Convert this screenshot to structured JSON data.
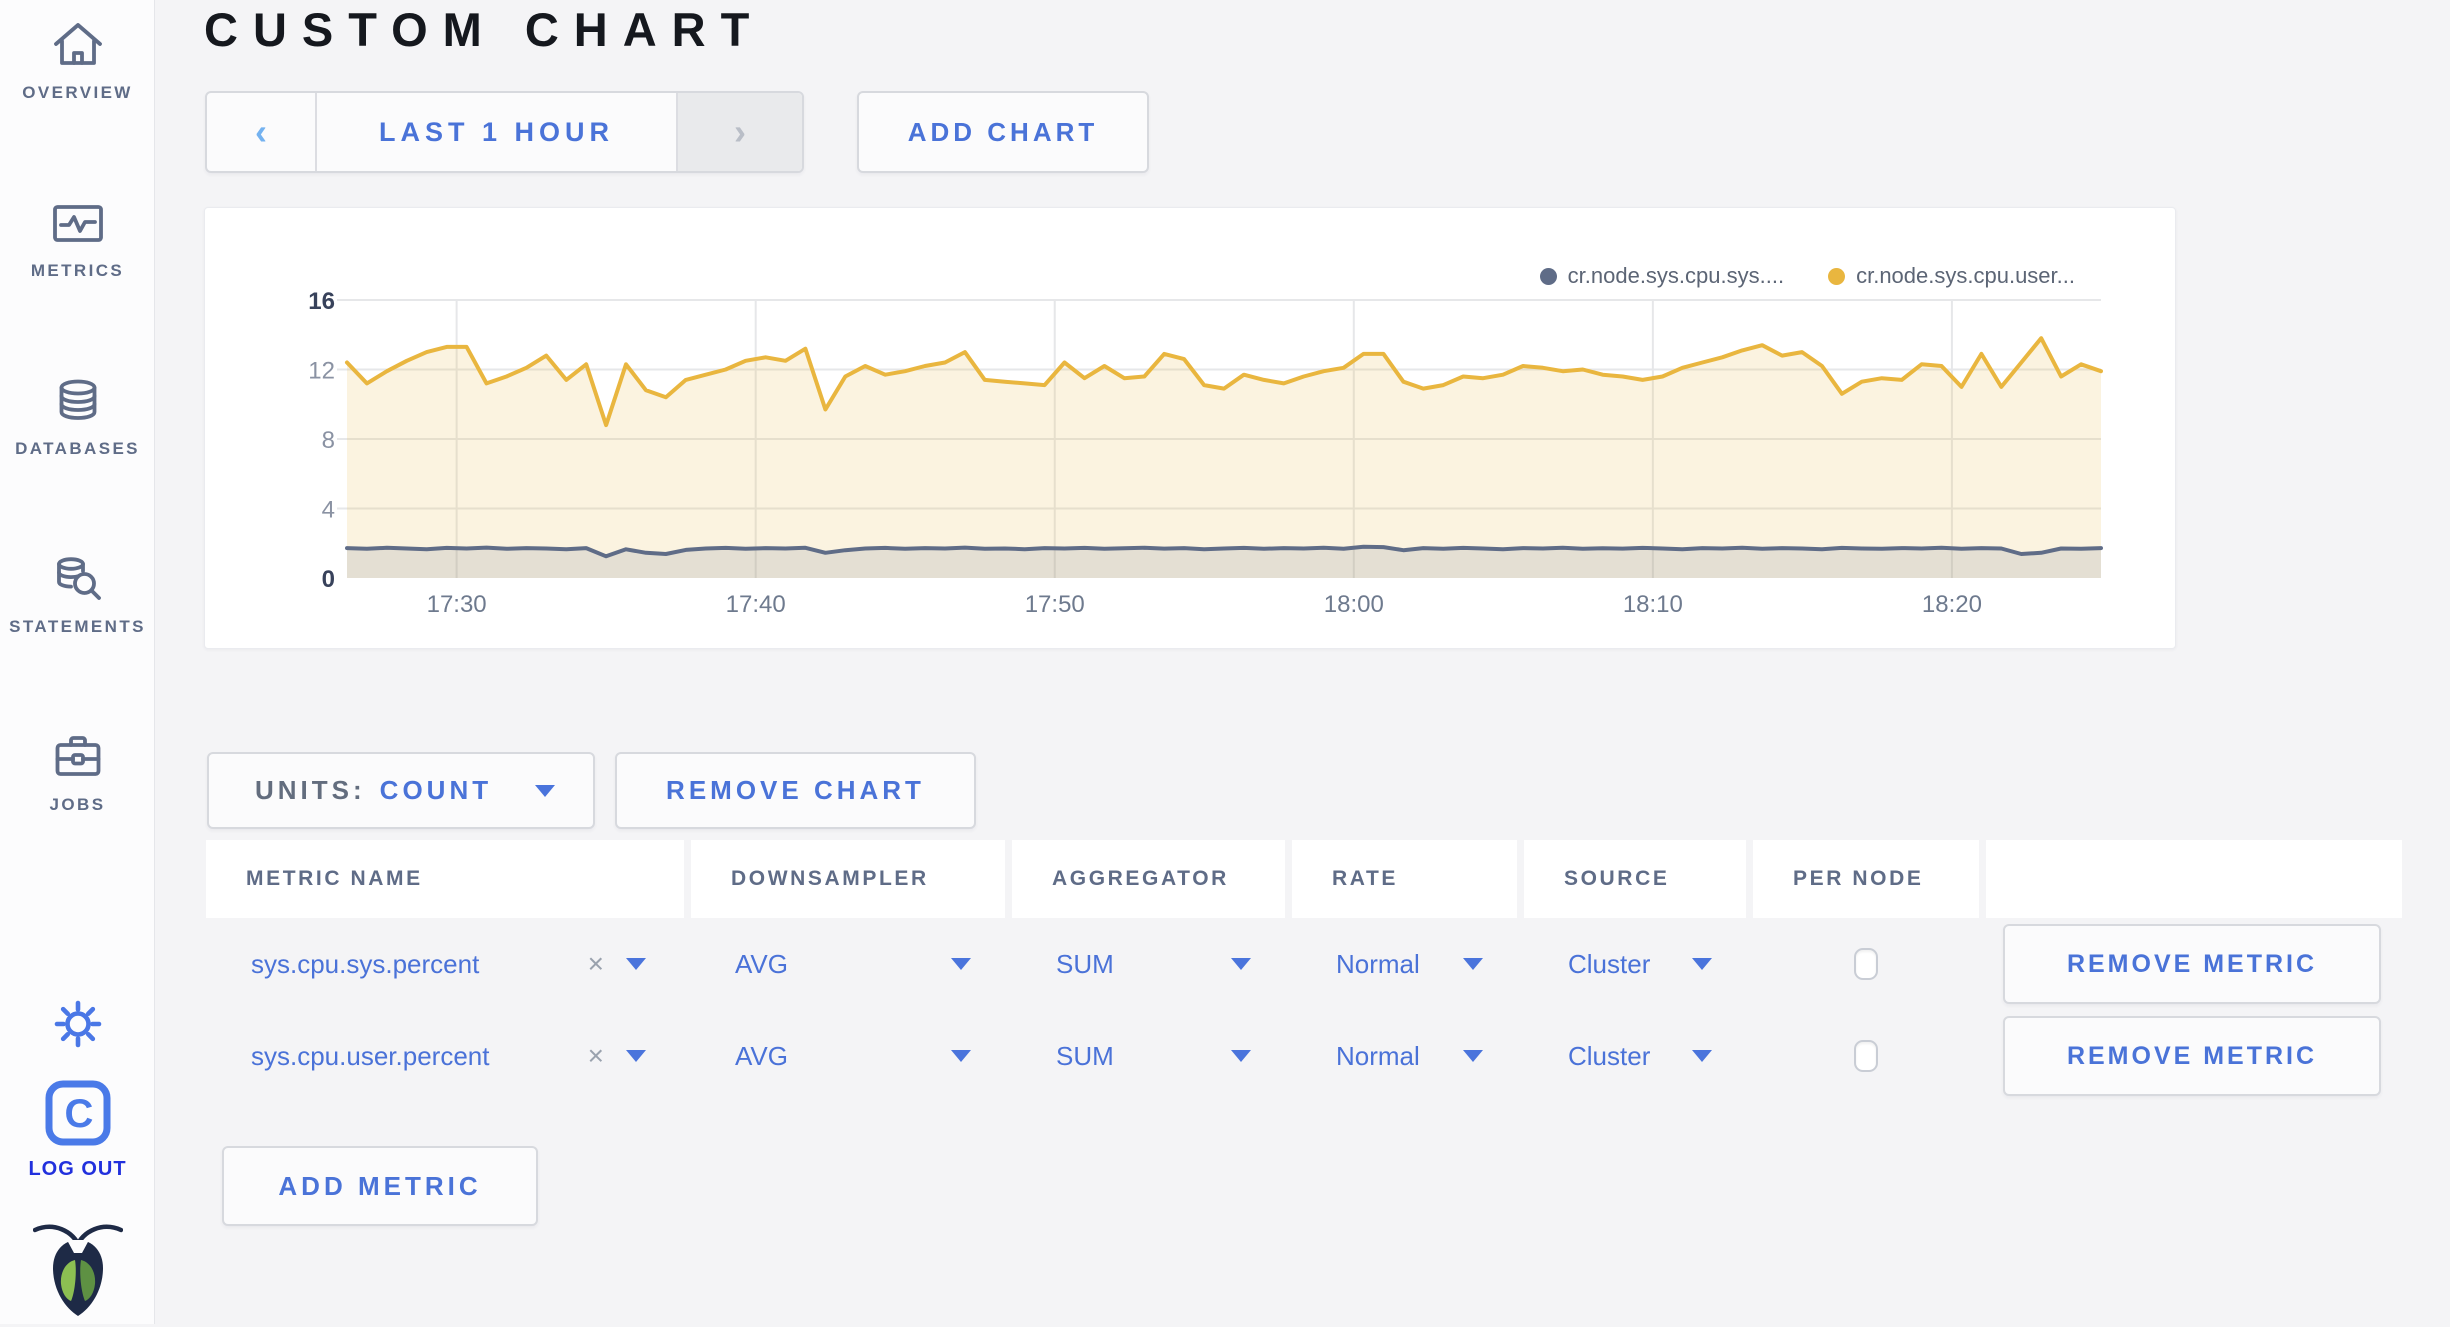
{
  "header": {
    "title": "CUSTOM CHART"
  },
  "sidebar": {
    "items": [
      {
        "id": "overview",
        "label": "OVERVIEW",
        "icon": "home-icon"
      },
      {
        "id": "metrics",
        "label": "METRICS",
        "icon": "metrics-icon"
      },
      {
        "id": "databases",
        "label": "DATABASES",
        "icon": "databases-icon"
      },
      {
        "id": "statements",
        "label": "STATEMENTS",
        "icon": "statements-icon"
      },
      {
        "id": "jobs",
        "label": "JOBS",
        "icon": "jobs-icon"
      }
    ],
    "logout": {
      "label": "LOG OUT",
      "logo_letter": "C"
    }
  },
  "toolbar": {
    "time_selector": {
      "prev_symbol": "‹",
      "label": "LAST 1 HOUR",
      "next_symbol": "›"
    },
    "add_chart_label": "ADD CHART"
  },
  "chart_data": {
    "type": "line",
    "ylim": [
      0,
      16
    ],
    "yticks": [
      0,
      4,
      8,
      12,
      16
    ],
    "xticks": [
      {
        "label": "17:30",
        "pos": 0.0625
      },
      {
        "label": "17:40",
        "pos": 0.233
      },
      {
        "label": "17:50",
        "pos": 0.4035
      },
      {
        "label": "18:00",
        "pos": 0.574
      },
      {
        "label": "18:10",
        "pos": 0.7445
      },
      {
        "label": "18:20",
        "pos": 0.915
      }
    ],
    "grid": true,
    "legend_position": "top-right",
    "series": [
      {
        "name": "cr.node.sys.cpu.sys....",
        "color": "#5f6c87",
        "fill": "rgba(95,108,135,0.14)",
        "values": [
          1.72,
          1.68,
          1.74,
          1.7,
          1.66,
          1.73,
          1.7,
          1.75,
          1.68,
          1.72,
          1.7,
          1.66,
          1.72,
          1.25,
          1.65,
          1.45,
          1.38,
          1.62,
          1.7,
          1.73,
          1.68,
          1.72,
          1.7,
          1.74,
          1.45,
          1.6,
          1.7,
          1.73,
          1.68,
          1.72,
          1.7,
          1.75,
          1.68,
          1.7,
          1.66,
          1.72,
          1.7,
          1.73,
          1.68,
          1.71,
          1.74,
          1.69,
          1.72,
          1.66,
          1.7,
          1.73,
          1.68,
          1.72,
          1.7,
          1.74,
          1.68,
          1.8,
          1.78,
          1.6,
          1.72,
          1.68,
          1.73,
          1.7,
          1.66,
          1.72,
          1.7,
          1.74,
          1.68,
          1.71,
          1.69,
          1.73,
          1.7,
          1.66,
          1.72,
          1.7,
          1.74,
          1.68,
          1.72,
          1.7,
          1.66,
          1.73,
          1.7,
          1.68,
          1.72,
          1.7,
          1.74,
          1.68,
          1.72,
          1.7,
          1.38,
          1.45,
          1.7,
          1.68,
          1.72
        ]
      },
      {
        "name": "cr.node.sys.cpu.user...",
        "color": "#e9b63f",
        "fill": "rgba(233,182,63,0.16)",
        "values": [
          12.4,
          11.2,
          11.9,
          12.5,
          13.0,
          13.3,
          13.3,
          11.2,
          11.6,
          12.1,
          12.8,
          11.4,
          12.3,
          8.8,
          12.3,
          10.8,
          10.4,
          11.4,
          11.7,
          12.0,
          12.5,
          12.7,
          12.5,
          13.2,
          9.7,
          11.6,
          12.2,
          11.7,
          11.9,
          12.2,
          12.4,
          13.0,
          11.4,
          11.3,
          11.2,
          11.1,
          12.4,
          11.5,
          12.2,
          11.5,
          11.6,
          12.9,
          12.6,
          11.1,
          10.9,
          11.7,
          11.4,
          11.2,
          11.6,
          11.9,
          12.1,
          12.9,
          12.9,
          11.3,
          10.9,
          11.1,
          11.6,
          11.5,
          11.7,
          12.2,
          12.1,
          11.9,
          12.0,
          11.7,
          11.6,
          11.4,
          11.6,
          12.1,
          12.4,
          12.7,
          13.1,
          13.4,
          12.8,
          13.0,
          12.2,
          10.6,
          11.3,
          11.5,
          11.4,
          12.3,
          12.2,
          11.0,
          12.9,
          11.0,
          12.4,
          13.8,
          11.6,
          12.3,
          11.9
        ]
      }
    ]
  },
  "units_bar": {
    "units_label": "UNITS:",
    "units_value": "COUNT",
    "remove_chart_label": "REMOVE CHART"
  },
  "metrics_table": {
    "columns": [
      "METRIC NAME",
      "DOWNSAMPLER",
      "AGGREGATOR",
      "RATE",
      "SOURCE",
      "PER NODE",
      ""
    ],
    "rows": [
      {
        "metric_name": "sys.cpu.sys.percent",
        "clear_symbol": "×",
        "downsampler": "AVG",
        "aggregator": "SUM",
        "rate": "Normal",
        "source": "Cluster",
        "per_node_checked": false,
        "remove_label": "REMOVE METRIC"
      },
      {
        "metric_name": "sys.cpu.user.percent",
        "clear_symbol": "×",
        "downsampler": "AVG",
        "aggregator": "SUM",
        "rate": "Normal",
        "source": "Cluster",
        "per_node_checked": false,
        "remove_label": "REMOVE METRIC"
      }
    ],
    "add_metric_label": "ADD METRIC"
  }
}
